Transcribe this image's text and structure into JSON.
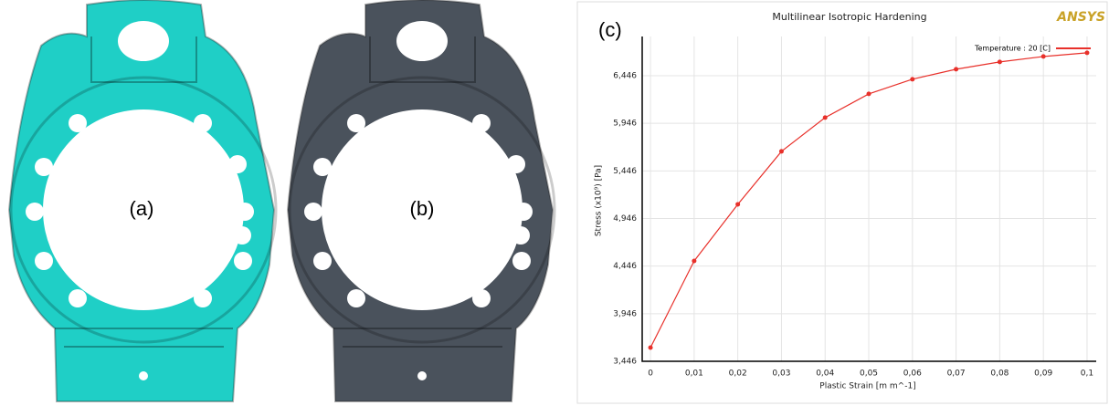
{
  "panels": [
    {
      "label": "(a)"
    },
    {
      "label": "(b)"
    }
  ],
  "chart_data": {
    "type": "line",
    "panel_label": "(c)",
    "title": "Multilinear Isotropic Hardening",
    "logo": "ANSYS",
    "x_label": "Plastic Strain  [m m^-1]",
    "y_label": "Stress  (x10⁹)  [Pa]",
    "x": [
      0,
      0.01,
      0.02,
      0.03,
      0.04,
      0.05,
      0.06,
      0.07,
      0.08,
      0.09,
      0.1
    ],
    "series": [
      {
        "name": "Temperature : 20 [C]",
        "color": "#e8302a",
        "values": [
          3.59,
          4.5,
          5.095,
          5.651,
          6.006,
          6.255,
          6.409,
          6.514,
          6.591,
          6.648,
          6.687
        ]
      }
    ],
    "xlim": [
      -0.0019,
      0.1021
    ],
    "ylim": [
      3.446,
      6.858
    ],
    "xticks": [
      0,
      {
        "value": 0.01,
        "label": "0,01"
      },
      {
        "value": 0.02,
        "label": "0,02"
      },
      {
        "value": 0.03,
        "label": "0,03"
      },
      {
        "value": 0.04,
        "label": "0,04"
      },
      {
        "value": 0.05,
        "label": "0,05"
      },
      {
        "value": 0.06,
        "label": "0,06"
      },
      {
        "value": 0.07,
        "label": "0,07"
      },
      {
        "value": 0.08,
        "label": "0,08"
      },
      {
        "value": 0.09,
        "label": "0,09"
      },
      {
        "value": 0.1,
        "label": "0,1"
      }
    ],
    "yticks": [
      {
        "value": 3.446,
        "label": "3,446"
      },
      {
        "value": 3.946,
        "label": "3,946"
      },
      {
        "value": 4.446,
        "label": "4,446"
      },
      {
        "value": 4.946,
        "label": "4,946"
      },
      {
        "value": 5.446,
        "label": "5,446"
      },
      {
        "value": 5.946,
        "label": "5,946"
      },
      {
        "value": 6.446,
        "label": "6,446"
      }
    ],
    "grid": true
  }
}
